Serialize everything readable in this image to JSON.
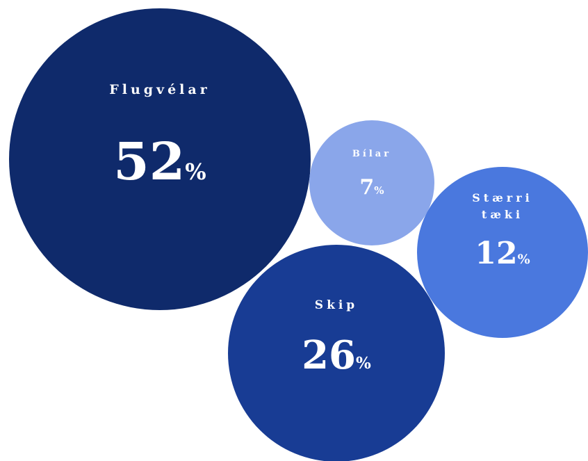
{
  "chart_data": {
    "type": "bubble",
    "title": "",
    "unit": "%",
    "series": [
      {
        "name": "Flugvélar",
        "label_lines": [
          "Flugvélar"
        ],
        "value": 52,
        "color": "#0f2a6b"
      },
      {
        "name": "Bílar",
        "label_lines": [
          "Bílar"
        ],
        "value": 7,
        "color": "#8aa6ea"
      },
      {
        "name": "Stærri tæki",
        "label_lines": [
          "Stærri",
          "tæki"
        ],
        "value": 12,
        "color": "#4a78de"
      },
      {
        "name": "Skip",
        "label_lines": [
          "Skip"
        ],
        "value": 26,
        "color": "#183c94"
      }
    ]
  }
}
